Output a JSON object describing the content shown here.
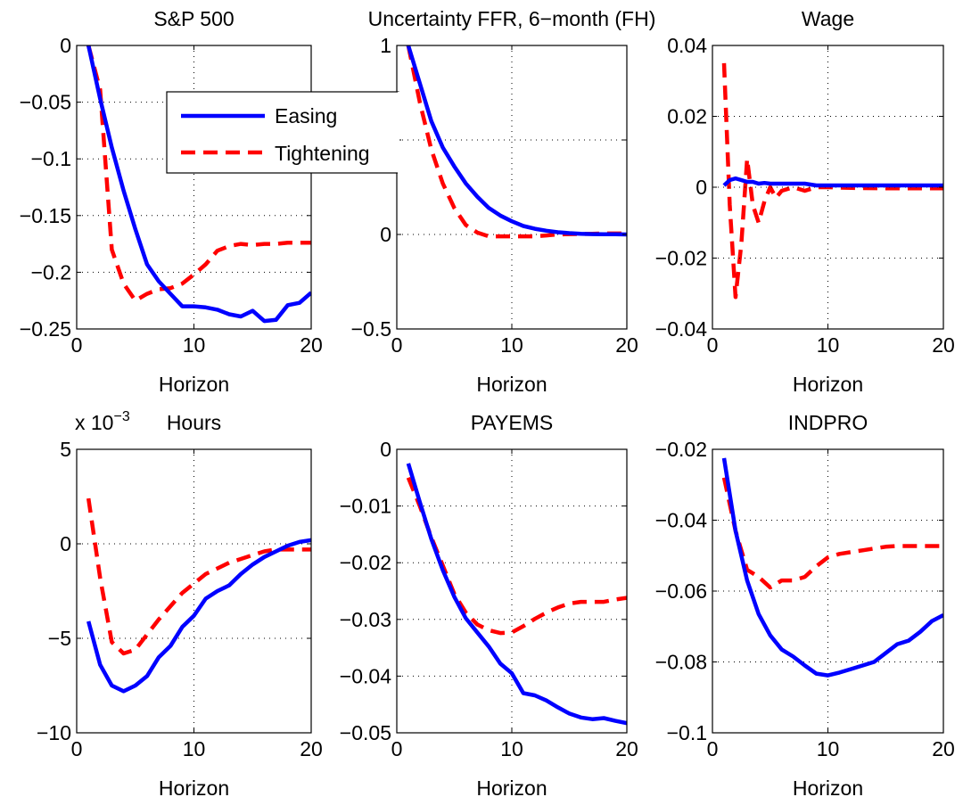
{
  "figure": {
    "legend_entries": [
      "Easing",
      "Tightening"
    ],
    "legend_placement": "top-right of first panel",
    "colors": {
      "easing": "#0000ff",
      "tightening": "#ff0000"
    }
  },
  "chart_data": [
    {
      "type": "line",
      "title": "S&P 500",
      "xlabel": "Horizon",
      "ylabel": "",
      "multiplier_label": "",
      "xlim": [
        0,
        20
      ],
      "ylim": [
        -0.25,
        0
      ],
      "xticks": [
        0,
        10,
        20
      ],
      "xtick_labels": [
        "0",
        "10",
        "20"
      ],
      "yticks": [
        0,
        -0.05,
        -0.1,
        -0.15,
        -0.2,
        -0.25
      ],
      "ytick_labels": [
        "0",
        "−0.05",
        "−0.1",
        "−0.15",
        "−0.2",
        "−0.25"
      ],
      "grid": true,
      "legend": true,
      "x": [
        1,
        2,
        3,
        4,
        5,
        6,
        7,
        8,
        9,
        10,
        11,
        12,
        13,
        14,
        15,
        16,
        17,
        18,
        19,
        20
      ],
      "series": [
        {
          "name": "Easing",
          "style": "solid",
          "values": [
            0,
            -0.047,
            -0.09,
            -0.128,
            -0.162,
            -0.193,
            -0.208,
            -0.219,
            -0.23,
            -0.23,
            -0.231,
            -0.233,
            -0.237,
            -0.239,
            -0.234,
            -0.243,
            -0.242,
            -0.229,
            -0.227,
            -0.218
          ]
        },
        {
          "name": "Tightening",
          "style": "dashed",
          "values": [
            0,
            -0.039,
            -0.18,
            -0.21,
            -0.225,
            -0.219,
            -0.215,
            -0.214,
            -0.21,
            -0.202,
            -0.193,
            -0.181,
            -0.177,
            -0.175,
            -0.176,
            -0.175,
            -0.175,
            -0.174,
            -0.174,
            -0.174
          ]
        }
      ]
    },
    {
      "type": "line",
      "title": "Uncertainty FFR, 6−month (FH)",
      "xlabel": "Horizon",
      "ylabel": "",
      "multiplier_label": "",
      "xlim": [
        0,
        20
      ],
      "ylim": [
        -0.5,
        1
      ],
      "xticks": [
        0,
        10,
        20
      ],
      "xtick_labels": [
        "0",
        "10",
        "20"
      ],
      "yticks": [
        1,
        0.5,
        0,
        -0.5
      ],
      "ytick_labels": [
        "1",
        "0.5",
        "0",
        "−0.5"
      ],
      "grid": true,
      "legend": false,
      "x": [
        1,
        2,
        3,
        4,
        5,
        6,
        7,
        8,
        9,
        10,
        11,
        12,
        13,
        14,
        15,
        16,
        17,
        18,
        19,
        20
      ],
      "series": [
        {
          "name": "Easing",
          "style": "solid",
          "values": [
            1,
            0.8,
            0.6,
            0.46,
            0.36,
            0.27,
            0.2,
            0.14,
            0.1,
            0.07,
            0.045,
            0.03,
            0.02,
            0.012,
            0.007,
            0.004,
            0.002,
            0.001,
            0.001,
            0
          ]
        },
        {
          "name": "Tightening",
          "style": "dashed",
          "values": [
            1,
            0.7,
            0.45,
            0.27,
            0.14,
            0.05,
            0.01,
            -0.01,
            -0.01,
            -0.01,
            -0.01,
            -0.01,
            -0.005,
            0,
            0.002,
            0.003,
            0.004,
            0.005,
            0.005,
            0.005
          ]
        }
      ]
    },
    {
      "type": "line",
      "title": "Wage",
      "xlabel": "Horizon",
      "ylabel": "",
      "multiplier_label": "",
      "xlim": [
        0,
        20
      ],
      "ylim": [
        -0.04,
        0.04
      ],
      "xticks": [
        0,
        10,
        20
      ],
      "xtick_labels": [
        "0",
        "10",
        "20"
      ],
      "yticks": [
        0.04,
        0.02,
        0,
        -0.02,
        -0.04
      ],
      "ytick_labels": [
        "0.04",
        "0.02",
        "0",
        "−0.02",
        "−0.04"
      ],
      "grid": true,
      "legend": false,
      "x": [
        1,
        1.5,
        2,
        2.5,
        3,
        3.5,
        4,
        4.5,
        5,
        6,
        7,
        8,
        9,
        10,
        12,
        15,
        20
      ],
      "series": [
        {
          "name": "Easing",
          "style": "solid",
          "values": [
            0.0005,
            0.002,
            0.0025,
            0.002,
            0.0015,
            0.0015,
            0.001,
            0.0012,
            0.001,
            0.001,
            0.001,
            0.001,
            0.0005,
            0.0005,
            0.0005,
            0.0005,
            0.0005
          ]
        }
      ]
    },
    {
      "type": "line",
      "title": "Hours",
      "xlabel": "Horizon",
      "ylabel": "",
      "multiplier_label": "x 10^-3",
      "xlim": [
        0,
        20
      ],
      "ylim": [
        -10,
        5
      ],
      "xticks": [
        0,
        10,
        20
      ],
      "xtick_labels": [
        "0",
        "10",
        "20"
      ],
      "yticks": [
        5,
        0,
        -5,
        -10
      ],
      "ytick_labels": [
        "5",
        "0",
        "−5",
        "−10"
      ],
      "grid": true,
      "legend": false,
      "x": [
        1,
        2,
        3,
        4,
        5,
        6,
        7,
        8,
        9,
        10,
        11,
        12,
        13,
        14,
        15,
        16,
        17,
        18,
        19,
        20
      ],
      "series": [
        {
          "name": "Easing",
          "style": "solid",
          "values": [
            -4.1,
            -6.4,
            -7.5,
            -7.8,
            -7.5,
            -7.0,
            -6.0,
            -5.4,
            -4.4,
            -3.8,
            -2.9,
            -2.5,
            -2.2,
            -1.6,
            -1.1,
            -0.7,
            -0.4,
            -0.1,
            0.1,
            0.2
          ]
        },
        {
          "name": "Tightening",
          "style": "dashed",
          "values": [
            2.4,
            -1.8,
            -5.2,
            -5.8,
            -5.6,
            -4.8,
            -4.0,
            -3.3,
            -2.6,
            -2.1,
            -1.6,
            -1.3,
            -1.0,
            -0.8,
            -0.6,
            -0.4,
            -0.3,
            -0.3,
            -0.3,
            -0.3
          ]
        }
      ]
    },
    {
      "type": "line",
      "title": "PAYEMS",
      "xlabel": "Horizon",
      "ylabel": "",
      "multiplier_label": "",
      "xlim": [
        0,
        20
      ],
      "ylim": [
        -0.05,
        0
      ],
      "xticks": [
        0,
        10,
        20
      ],
      "xtick_labels": [
        "0",
        "10",
        "20"
      ],
      "yticks": [
        0,
        -0.01,
        -0.02,
        -0.03,
        -0.04,
        -0.05
      ],
      "ytick_labels": [
        "0",
        "−0.01",
        "−0.02",
        "−0.03",
        "−0.04",
        "−0.05"
      ],
      "grid": true,
      "legend": false,
      "x": [
        1,
        2,
        3,
        4,
        5,
        6,
        7,
        8,
        9,
        10,
        11,
        12,
        13,
        14,
        15,
        16,
        17,
        18,
        19,
        20
      ],
      "series": [
        {
          "name": "Easing",
          "style": "solid",
          "values": [
            -0.0025,
            -0.0093,
            -0.0158,
            -0.0213,
            -0.026,
            -0.0298,
            -0.0323,
            -0.0348,
            -0.0378,
            -0.0395,
            -0.043,
            -0.0434,
            -0.0443,
            -0.0455,
            -0.0466,
            -0.0473,
            -0.0476,
            -0.0474,
            -0.0479,
            -0.0483
          ]
        },
        {
          "name": "Tightening",
          "style": "dashed",
          "values": [
            -0.005,
            -0.01,
            -0.0155,
            -0.0205,
            -0.0255,
            -0.0288,
            -0.0309,
            -0.0319,
            -0.0324,
            -0.0323,
            -0.0312,
            -0.0299,
            -0.0288,
            -0.0279,
            -0.0272,
            -0.0269,
            -0.0269,
            -0.0269,
            -0.0265,
            -0.0262
          ]
        }
      ]
    },
    {
      "type": "line",
      "title": "INDPRO",
      "xlabel": "Horizon",
      "ylabel": "",
      "multiplier_label": "",
      "xlim": [
        0,
        20
      ],
      "ylim": [
        -0.1,
        -0.02
      ],
      "xticks": [
        0,
        10,
        20
      ],
      "xtick_labels": [
        "0",
        "10",
        "20"
      ],
      "yticks": [
        -0.02,
        -0.04,
        -0.06,
        -0.08,
        -0.1
      ],
      "ytick_labels": [
        "−0.02",
        "−0.04",
        "−0.06",
        "−0.08",
        "−0.1"
      ],
      "grid": true,
      "legend": false,
      "x": [
        1,
        2,
        3,
        4,
        5,
        6,
        7,
        8,
        9,
        10,
        11,
        12,
        13,
        14,
        15,
        16,
        17,
        18,
        19,
        20
      ],
      "series": [
        {
          "name": "Easing",
          "style": "solid",
          "values": [
            -0.0225,
            -0.043,
            -0.057,
            -0.0665,
            -0.0725,
            -0.0765,
            -0.0785,
            -0.081,
            -0.0833,
            -0.0838,
            -0.083,
            -0.082,
            -0.081,
            -0.08,
            -0.0775,
            -0.075,
            -0.074,
            -0.0715,
            -0.0685,
            -0.0668
          ]
        },
        {
          "name": "Tightening",
          "style": "dashed",
          "values": [
            -0.028,
            -0.043,
            -0.054,
            -0.056,
            -0.059,
            -0.057,
            -0.057,
            -0.056,
            -0.053,
            -0.0505,
            -0.0495,
            -0.049,
            -0.0485,
            -0.048,
            -0.0475,
            -0.0473,
            -0.0473,
            -0.0473,
            -0.0473,
            -0.0473
          ]
        }
      ]
    }
  ]
}
